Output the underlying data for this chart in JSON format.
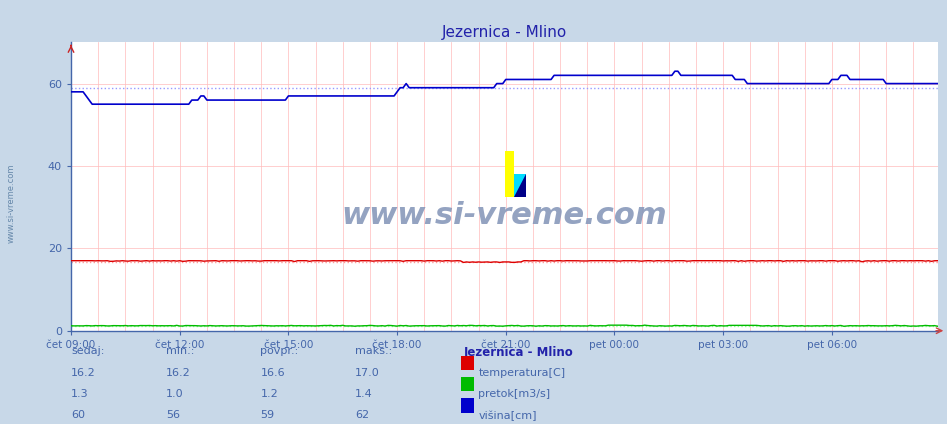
{
  "title": "Jezernica - Mlino",
  "bg_color": "#c8d8e8",
  "plot_bg_color": "#ffffff",
  "title_color": "#2222aa",
  "ylabel_color": "#4466aa",
  "xlabel_color": "#4466aa",
  "watermark": "www.si-vreme.com",
  "watermark_color": "#aabbcc",
  "ylim": [
    0,
    70
  ],
  "yticks": [
    0,
    20,
    40,
    60
  ],
  "n_points": 288,
  "x_tick_labels": [
    "čet 09:00",
    "čet 12:00",
    "čet 15:00",
    "čet 18:00",
    "čet 21:00",
    "pet 00:00",
    "pet 03:00",
    "pet 06:00"
  ],
  "x_tick_positions": [
    0,
    36,
    72,
    108,
    144,
    180,
    216,
    252
  ],
  "temp_color": "#dd0000",
  "flow_color": "#00bb00",
  "height_color": "#0000cc",
  "temp_avg_color": "#ff9999",
  "flow_avg_color": "#99ff99",
  "height_avg_color": "#9999ff",
  "temp_value": 16.2,
  "temp_min": 16.2,
  "temp_avg": 16.6,
  "temp_max": 17.0,
  "flow_value": 1.3,
  "flow_min": 1.0,
  "flow_avg": 1.2,
  "flow_max": 1.4,
  "height_value": 60,
  "height_min": 56,
  "height_avg": 59,
  "height_max": 62,
  "legend_title": "Jezernica - Mlino",
  "legend_labels": [
    "temperatura[C]",
    "pretok[m3/s]",
    "višina[cm]"
  ],
  "table_headers": [
    "sedaj:",
    "min.:",
    "povpr.:",
    "maks.:"
  ],
  "sidebar_text": "www.si-vreme.com"
}
